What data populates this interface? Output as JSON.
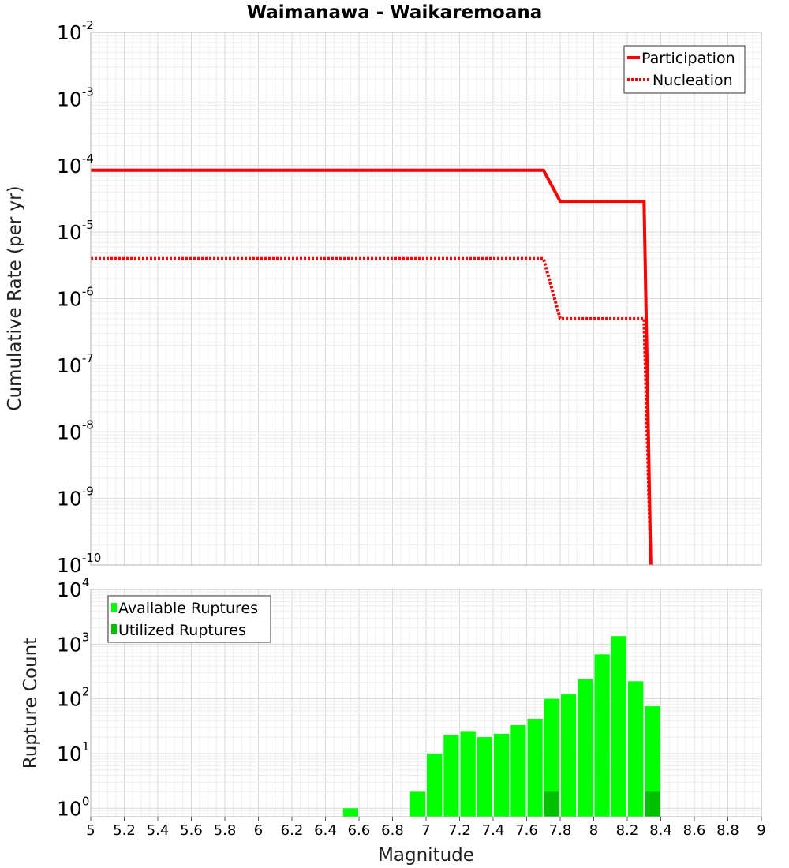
{
  "chart_data": [
    {
      "type": "line",
      "title": "Waimanawa - Waikaremoana",
      "xlabel": "",
      "ylabel": "Cumulative Rate (per yr)",
      "xlim": [
        5,
        9
      ],
      "ylim": [
        1e-10,
        0.01
      ],
      "yscale": "log",
      "y_ticks": [
        {
          "base": "10",
          "exp": "-10"
        },
        {
          "base": "10",
          "exp": "-9"
        },
        {
          "base": "10",
          "exp": "-8"
        },
        {
          "base": "10",
          "exp": "-7"
        },
        {
          "base": "10",
          "exp": "-6"
        },
        {
          "base": "10",
          "exp": "-5"
        },
        {
          "base": "10",
          "exp": "-4"
        },
        {
          "base": "10",
          "exp": "-3"
        },
        {
          "base": "10",
          "exp": "-2"
        }
      ],
      "grid": true,
      "legend_position": "top-right",
      "series": [
        {
          "name": "Participation",
          "style": "solid",
          "color": "#ff0000",
          "points": [
            [
              5.0,
              8.5e-05
            ],
            [
              7.7,
              8.5e-05
            ],
            [
              7.8,
              2.9e-05
            ],
            [
              8.3,
              2.9e-05
            ],
            [
              8.34,
              1e-10
            ]
          ]
        },
        {
          "name": "Nucleation",
          "style": "dotted",
          "color": "#ff0000",
          "points": [
            [
              5.0,
              4e-06
            ],
            [
              7.7,
              4e-06
            ],
            [
              7.8,
              5e-07
            ],
            [
              8.3,
              5e-07
            ],
            [
              8.34,
              1e-10
            ]
          ]
        }
      ]
    },
    {
      "type": "bar",
      "title": "",
      "xlabel": "Magnitude",
      "ylabel": "Rupture Count",
      "xlim": [
        5,
        9
      ],
      "ylim": [
        0.7,
        10000
      ],
      "yscale": "log",
      "y_ticks": [
        {
          "base": "10",
          "exp": "0"
        },
        {
          "base": "10",
          "exp": "1"
        },
        {
          "base": "10",
          "exp": "2"
        },
        {
          "base": "10",
          "exp": "3"
        },
        {
          "base": "10",
          "exp": "4"
        }
      ],
      "x_ticks": [
        "5",
        "5.2",
        "5.4",
        "5.6",
        "5.8",
        "6",
        "6.2",
        "6.4",
        "6.6",
        "6.8",
        "7",
        "7.2",
        "7.4",
        "7.6",
        "7.8",
        "8",
        "8.2",
        "8.4",
        "8.6",
        "8.8",
        "9"
      ],
      "bar_width": 0.1,
      "grid": true,
      "legend_position": "top-left",
      "series": [
        {
          "name": "Available Ruptures",
          "color": "#00ff00",
          "x": [
            6.55,
            6.95,
            7.05,
            7.15,
            7.25,
            7.35,
            7.45,
            7.55,
            7.65,
            7.75,
            7.85,
            7.95,
            8.05,
            8.15,
            8.25,
            8.35
          ],
          "values": [
            1,
            2,
            10,
            22,
            25,
            20,
            23,
            33,
            43,
            100,
            120,
            230,
            650,
            1400,
            210,
            73
          ]
        },
        {
          "name": "Utilized Ruptures",
          "color": "#00c000",
          "x": [
            7.75,
            8.35
          ],
          "values": [
            2,
            2
          ]
        }
      ]
    }
  ]
}
